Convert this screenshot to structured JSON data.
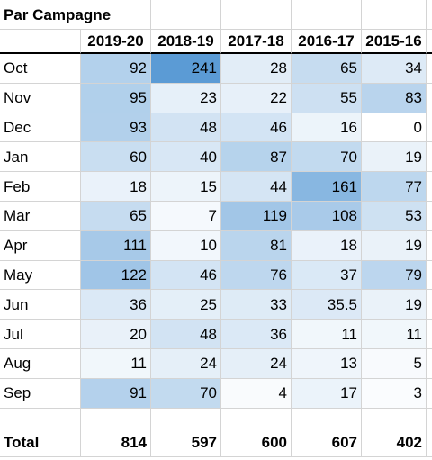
{
  "sheet": {
    "title": "Par Campagne",
    "columns": [
      "2019-20",
      "2018-19",
      "2017-18",
      "2016-17",
      "2015-16"
    ],
    "rows": [
      {
        "label": "Oct",
        "values": [
          "92",
          "241",
          "28",
          "65",
          "34"
        ]
      },
      {
        "label": "Nov",
        "values": [
          "95",
          "23",
          "22",
          "55",
          "83"
        ]
      },
      {
        "label": "Dec",
        "values": [
          "93",
          "48",
          "46",
          "16",
          "0"
        ]
      },
      {
        "label": "Jan",
        "values": [
          "60",
          "40",
          "87",
          "70",
          "19"
        ]
      },
      {
        "label": "Feb",
        "values": [
          "18",
          "15",
          "44",
          "161",
          "77"
        ]
      },
      {
        "label": "Mar",
        "values": [
          "65",
          "7",
          "119",
          "108",
          "53"
        ]
      },
      {
        "label": "Apr",
        "values": [
          "111",
          "10",
          "81",
          "18",
          "19"
        ]
      },
      {
        "label": "May",
        "values": [
          "122",
          "46",
          "76",
          "37",
          "79"
        ]
      },
      {
        "label": "Jun",
        "values": [
          "36",
          "25",
          "33",
          "35.5",
          "19"
        ]
      },
      {
        "label": "Jul",
        "values": [
          "20",
          "48",
          "36",
          "11",
          "11"
        ]
      },
      {
        "label": "Aug",
        "values": [
          "11",
          "24",
          "24",
          "13",
          "5"
        ]
      },
      {
        "label": "Sep",
        "values": [
          "91",
          "70",
          "4",
          "17",
          "3"
        ]
      }
    ],
    "total": {
      "label": "Total",
      "values": [
        "814",
        "597",
        "600",
        "607",
        "402"
      ]
    },
    "colors": {
      "heat_low": "#ffffff",
      "heat_high": "#5b9bd5",
      "grid": "#d4d4d4"
    }
  }
}
